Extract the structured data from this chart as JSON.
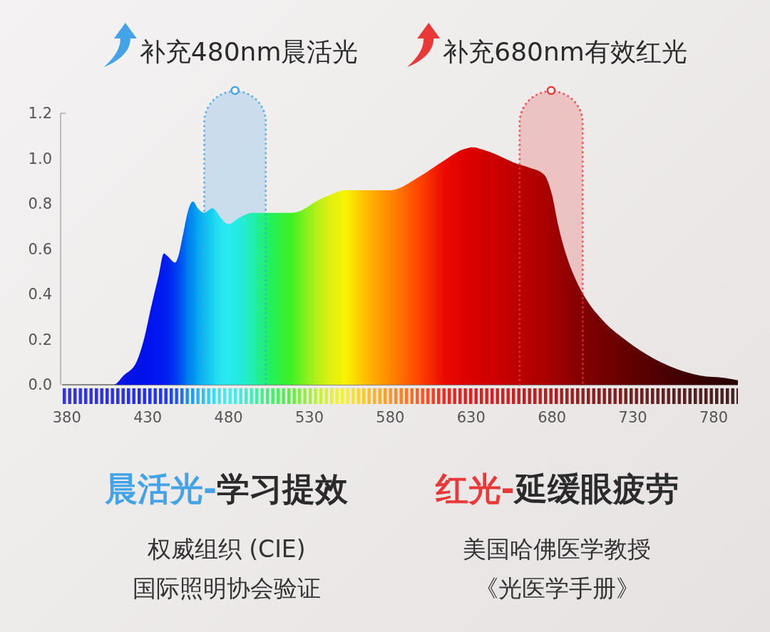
{
  "chart_data": {
    "type": "area",
    "x": [
      377,
      409,
      415,
      423,
      428,
      432,
      437,
      440,
      442,
      447,
      449,
      452,
      455,
      458,
      461,
      465,
      470,
      472,
      475,
      480,
      487,
      495,
      505,
      519,
      525,
      534,
      543,
      552,
      568,
      580,
      598,
      613,
      625,
      631,
      637,
      654,
      657,
      666,
      675,
      680,
      684,
      689,
      695,
      701,
      712,
      727,
      742,
      757,
      772,
      787,
      795
    ],
    "values": [
      0,
      0,
      0.04,
      0.1,
      0.21,
      0.34,
      0.49,
      0.58,
      0.57,
      0.54,
      0.57,
      0.67,
      0.77,
      0.81,
      0.78,
      0.76,
      0.78,
      0.77,
      0.74,
      0.71,
      0.74,
      0.76,
      0.76,
      0.76,
      0.77,
      0.81,
      0.84,
      0.86,
      0.86,
      0.86,
      0.92,
      0.99,
      1.04,
      1.05,
      1.04,
      0.99,
      0.98,
      0.96,
      0.93,
      0.84,
      0.7,
      0.57,
      0.46,
      0.38,
      0.28,
      0.19,
      0.12,
      0.07,
      0.04,
      0.03,
      0.02
    ],
    "colors": [
      "#1a1ad0",
      "#0a14e0",
      "#0a14e4",
      "#0012e8",
      "#0012ec",
      "#0014f0",
      "#0018f0",
      "#001cf0",
      "#0020f0",
      "#0038f0",
      "#0048f0",
      "#0060f0",
      "#0080f0",
      "#0090f0",
      "#08a8f0",
      "#10bcf0",
      "#18d0f0",
      "#20dcf0",
      "#28e4f0",
      "#28eaf0",
      "#24eadc",
      "#22eeb0",
      "#20f060",
      "#40f020",
      "#70f020",
      "#b0f018",
      "#e0f010",
      "#f8f400",
      "#ffb000",
      "#ff8800",
      "#ff4400",
      "#ec0c00",
      "#e00000",
      "#dc0000",
      "#d40000",
      "#c40000",
      "#c00000",
      "#b40000",
      "#ac0000",
      "#a40000",
      "#9c0000",
      "#940000",
      "#880000",
      "#800000",
      "#740000",
      "#640000",
      "#540000",
      "#440000",
      "#380000",
      "#2c0000",
      "#280000"
    ],
    "xlim": [
      377,
      795
    ],
    "xticks": [
      380,
      430,
      480,
      530,
      580,
      630,
      680,
      730,
      780
    ],
    "ylim": [
      0,
      1.2
    ],
    "yticks": [
      {
        "value": 0,
        "label": "0.0"
      },
      0.2,
      0.4,
      0.6,
      0.8,
      {
        "value": 1,
        "label": "1.0"
      },
      1.2
    ],
    "bands": [
      {
        "axis": "x",
        "from": 465,
        "to": 503,
        "label": "补充480nm晨活光",
        "color": "#44a2e6"
      },
      {
        "axis": "x",
        "from": 660,
        "to": 699,
        "label": "补充680nm有效红光",
        "color": "#e83838"
      }
    ],
    "legend": "top",
    "annotations": [
      "晨活光-学习提效",
      "权威组织 (CIE)",
      "国际照明协会验证",
      "红光-延缓眼疲劳",
      "美国哈佛医学教授",
      "《光医学手册》"
    ]
  }
}
